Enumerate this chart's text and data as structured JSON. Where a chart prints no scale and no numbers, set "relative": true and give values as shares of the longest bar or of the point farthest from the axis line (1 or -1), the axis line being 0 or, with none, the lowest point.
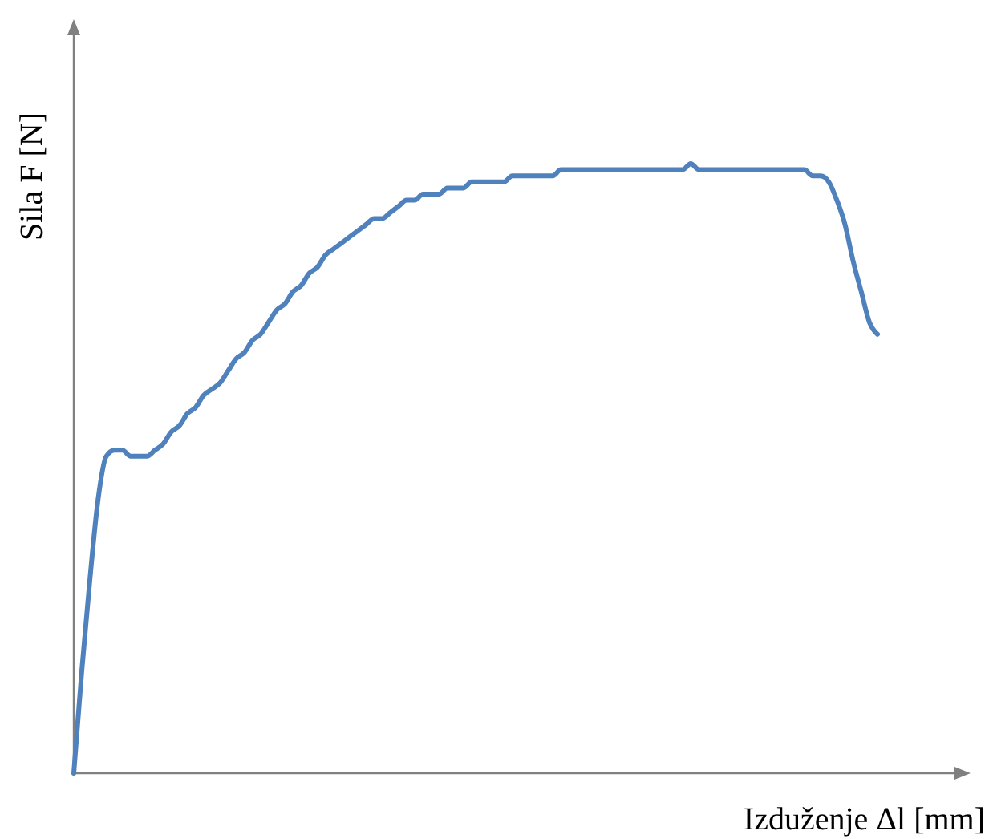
{
  "chart_data": {
    "type": "line",
    "relative": true,
    "xlabel": "Izduženje Δl [mm]",
    "ylabel": "Sila F [N]",
    "categories": [
      null,
      null,
      null,
      null,
      null,
      null,
      null,
      null,
      null,
      null,
      null,
      null,
      null,
      null,
      null,
      null,
      null,
      null,
      null,
      null,
      null,
      null,
      null,
      null,
      null,
      null,
      null,
      null,
      null,
      null,
      null,
      null,
      null,
      null,
      null,
      null,
      null,
      null,
      null,
      null,
      null,
      null,
      null,
      null,
      null,
      null,
      null,
      null,
      null,
      null,
      null,
      null,
      null,
      null,
      null,
      null,
      null,
      null,
      null,
      null,
      null,
      null,
      null,
      null,
      null,
      null,
      null,
      null,
      null,
      null,
      null,
      null,
      null,
      null,
      null,
      null,
      null,
      null,
      null,
      null,
      null,
      null,
      null,
      null,
      null,
      null,
      null,
      null,
      null,
      null,
      null,
      null,
      null,
      null,
      null,
      null,
      null,
      null,
      null,
      null
    ],
    "series": [
      {
        "color": "#4f81bd",
        "values": [
          0,
          0.17,
          0.32,
          0.45,
          0.52,
          0.53,
          0.53,
          0.52,
          0.52,
          0.52,
          0.53,
          0.54,
          0.56,
          0.57,
          0.59,
          0.6,
          0.62,
          0.63,
          0.64,
          0.66,
          0.68,
          0.69,
          0.71,
          0.72,
          0.74,
          0.76,
          0.77,
          0.79,
          0.8,
          0.82,
          0.83,
          0.85,
          0.86,
          0.87,
          0.88,
          0.89,
          0.9,
          0.91,
          0.91,
          0.92,
          0.93,
          0.94,
          0.94,
          0.95,
          0.95,
          0.95,
          0.96,
          0.96,
          0.96,
          0.97,
          0.97,
          0.97,
          0.97,
          0.97,
          0.98,
          0.98,
          0.98,
          0.98,
          0.98,
          0.98,
          0.99,
          0.99,
          0.99,
          0.99,
          0.99,
          0.99,
          0.99,
          0.99,
          0.99,
          0.99,
          0.99,
          0.99,
          0.99,
          0.99,
          0.99,
          0.99,
          1,
          0.99,
          0.99,
          0.99,
          0.99,
          0.99,
          0.99,
          0.99,
          0.99,
          0.99,
          0.99,
          0.99,
          0.99,
          0.99,
          0.99,
          0.98,
          0.98,
          0.97,
          0.94,
          0.9,
          0.84,
          0.79,
          0.74,
          0.72
        ]
      }
    ]
  }
}
